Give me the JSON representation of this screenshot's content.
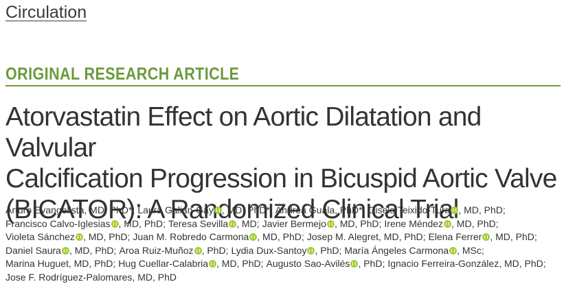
{
  "journal": "Circulation",
  "article_type": "ORIGINAL RESEARCH ARTICLE",
  "title_lines": [
    "Atorvastatin Effect on Aortic Dilatation and Valvular",
    "Calcification Progression in Bicuspid Aortic Valve",
    "(BICATOR): A Randomized Clinical Trial"
  ],
  "author_lines": [
    [
      {
        "name": "Arturo Evangelista",
        "orcid": false,
        "suffix": ", MD, PhD*;"
      },
      {
        "name": "Laura Galian-Gay",
        "orcid": true,
        "suffix": ", MD, PhD*;"
      },
      {
        "name": "Andrea Guala",
        "orcid": false,
        "suffix": ", PhD*;"
      },
      {
        "name": "Gisela Teixido-Tura",
        "orcid": true,
        "suffix": ", MD, PhD;"
      }
    ],
    [
      {
        "name": "Francisco Calvo-Iglesias",
        "orcid": true,
        "suffix": ", MD, PhD;"
      },
      {
        "name": "Teresa Sevilla",
        "orcid": true,
        "suffix": ", MD;"
      },
      {
        "name": "Javier Bermejo",
        "orcid": true,
        "suffix": ", MD, PhD;"
      },
      {
        "name": "Irene Méndez",
        "orcid": true,
        "suffix": ", MD, PhD;"
      }
    ],
    [
      {
        "name": "Violeta Sánchez",
        "orcid": true,
        "suffix": ", MD, PhD;"
      },
      {
        "name": "Juan M. Robredo Carmona",
        "orcid": true,
        "suffix": ", MD, PhD;"
      },
      {
        "name": "Josep M. Alegret",
        "orcid": false,
        "suffix": ", MD, PhD;"
      },
      {
        "name": "Elena Ferrer",
        "orcid": true,
        "suffix": ", MD, PhD;"
      }
    ],
    [
      {
        "name": "Daniel Saura",
        "orcid": true,
        "suffix": ", MD, PhD;"
      },
      {
        "name": "Aroa Ruiz-Muñoz",
        "orcid": true,
        "suffix": ", PhD;"
      },
      {
        "name": "Lydia Dux-Santoy",
        "orcid": true,
        "suffix": ", PhD;"
      },
      {
        "name": "María Ángeles Carmona",
        "orcid": true,
        "suffix": ", MSc;"
      }
    ],
    [
      {
        "name": "Marina Huguet",
        "orcid": false,
        "suffix": ", MD, PhD;"
      },
      {
        "name": "Hug Cuellar-Calabria",
        "orcid": true,
        "suffix": ", MD, PhD;"
      },
      {
        "name": "Augusto Sao-Avilés",
        "orcid": true,
        "suffix": ", PhD;"
      },
      {
        "name": "Ignacio Ferreira-González",
        "orcid": false,
        "suffix": ", MD, PhD;"
      }
    ],
    [
      {
        "name": "Jose F. Rodríguez-Palomares",
        "orcid": false,
        "suffix": ", MD, PhD"
      }
    ]
  ]
}
